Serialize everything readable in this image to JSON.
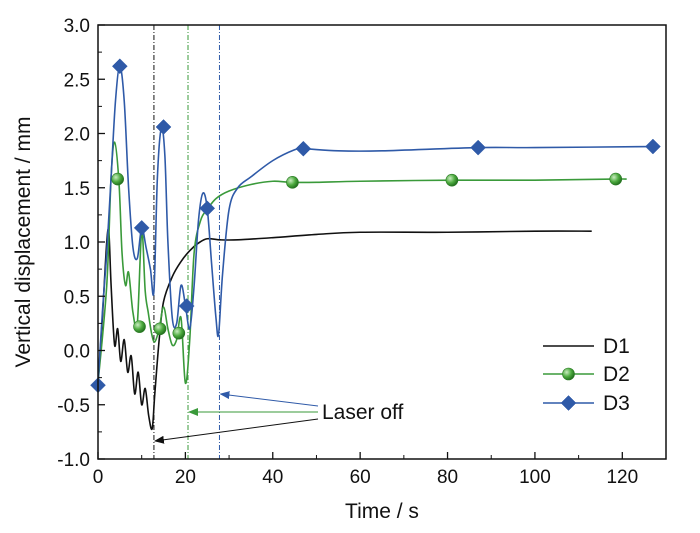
{
  "chart_data": {
    "type": "line",
    "title": "",
    "xlabel": "Time / s",
    "ylabel": "Vertical displacement / mm",
    "xlim": [
      0,
      130
    ],
    "ylim": [
      -1.0,
      3.0
    ],
    "xticks": [
      0,
      20,
      40,
      60,
      80,
      100,
      120
    ],
    "yticks": [
      -1.0,
      -0.5,
      0.0,
      0.5,
      1.0,
      1.5,
      2.0,
      2.5,
      3.0
    ],
    "grid": false,
    "legend_position": "bottom-right",
    "series": [
      {
        "name": "D1",
        "color": "#111111",
        "marker": "none",
        "points": [
          [
            0,
            -0.3
          ],
          [
            1,
            0.3
          ],
          [
            2,
            1.0
          ],
          [
            2.5,
            1.08
          ],
          [
            3,
            0.6
          ],
          [
            3.8,
            0.05
          ],
          [
            4.5,
            0.2
          ],
          [
            5.2,
            -0.1
          ],
          [
            6,
            0.1
          ],
          [
            6.8,
            -0.2
          ],
          [
            7.6,
            -0.05
          ],
          [
            8.4,
            -0.4
          ],
          [
            9.2,
            -0.2
          ],
          [
            10,
            -0.5
          ],
          [
            10.8,
            -0.35
          ],
          [
            11.6,
            -0.6
          ],
          [
            12.4,
            -0.72
          ],
          [
            13,
            -0.4
          ],
          [
            14,
            0.1
          ],
          [
            15,
            0.45
          ],
          [
            17,
            0.68
          ],
          [
            19,
            0.82
          ],
          [
            21,
            0.92
          ],
          [
            23,
            0.99
          ],
          [
            25,
            1.03
          ],
          [
            28,
            1.02
          ],
          [
            32,
            1.02
          ],
          [
            40,
            1.04
          ],
          [
            50,
            1.07
          ],
          [
            60,
            1.09
          ],
          [
            80,
            1.09
          ],
          [
            100,
            1.1
          ],
          [
            113,
            1.1
          ]
        ],
        "markers": []
      },
      {
        "name": "D2",
        "color": "#3a9a3a",
        "marker": "circle",
        "points": [
          [
            0,
            -0.3
          ],
          [
            2,
            0.6
          ],
          [
            3,
            1.6
          ],
          [
            3.8,
            1.92
          ],
          [
            4.8,
            1.55
          ],
          [
            5.5,
            0.9
          ],
          [
            6.3,
            0.6
          ],
          [
            7,
            0.72
          ],
          [
            8,
            0.35
          ],
          [
            9,
            0.25
          ],
          [
            10,
            1.1
          ],
          [
            10.8,
            0.55
          ],
          [
            11.5,
            0.35
          ],
          [
            12.3,
            0.15
          ],
          [
            13,
            0.08
          ],
          [
            14,
            0.2
          ],
          [
            15,
            0.4
          ],
          [
            16,
            0.2
          ],
          [
            17,
            0.05
          ],
          [
            18,
            0.1
          ],
          [
            19,
            0.3
          ],
          [
            20,
            -0.3
          ],
          [
            21,
            0.1
          ],
          [
            22,
            0.9
          ],
          [
            23.5,
            1.2
          ],
          [
            25,
            1.3
          ],
          [
            27,
            1.4
          ],
          [
            30,
            1.47
          ],
          [
            35,
            1.53
          ],
          [
            40,
            1.56
          ],
          [
            44,
            1.55
          ],
          [
            50,
            1.55
          ],
          [
            60,
            1.56
          ],
          [
            81,
            1.57
          ],
          [
            100,
            1.57
          ],
          [
            118,
            1.58
          ],
          [
            121,
            1.58
          ]
        ],
        "markers": [
          [
            4.5,
            1.58
          ],
          [
            9.5,
            0.22
          ],
          [
            14.2,
            0.2
          ],
          [
            18.5,
            0.16
          ],
          [
            44.5,
            1.55
          ],
          [
            81,
            1.57
          ],
          [
            118.5,
            1.58
          ]
        ]
      },
      {
        "name": "D3",
        "color": "#2f5aa8",
        "marker": "diamond",
        "points": [
          [
            0,
            -0.32
          ],
          [
            1,
            0.35
          ],
          [
            2,
            0.9
          ],
          [
            3,
            1.6
          ],
          [
            4,
            2.3
          ],
          [
            5,
            2.62
          ],
          [
            6,
            2.3
          ],
          [
            7,
            1.5
          ],
          [
            8,
            0.95
          ],
          [
            9,
            0.85
          ],
          [
            10,
            1.13
          ],
          [
            11,
            0.95
          ],
          [
            12,
            0.75
          ],
          [
            12.8,
            0.55
          ],
          [
            13.6,
            1.6
          ],
          [
            14.5,
            2.05
          ],
          [
            15.3,
            1.8
          ],
          [
            16,
            1.0
          ],
          [
            17,
            0.3
          ],
          [
            18,
            0.25
          ],
          [
            19,
            0.6
          ],
          [
            20,
            0.42
          ],
          [
            21,
            0.2
          ],
          [
            22,
            0.6
          ],
          [
            23,
            1.2
          ],
          [
            24,
            1.45
          ],
          [
            25,
            1.31
          ],
          [
            26,
            0.8
          ],
          [
            27,
            0.3
          ],
          [
            27.6,
            0.15
          ],
          [
            28.5,
            0.7
          ],
          [
            30,
            1.3
          ],
          [
            32,
            1.5
          ],
          [
            35,
            1.6
          ],
          [
            40,
            1.75
          ],
          [
            45,
            1.85
          ],
          [
            47,
            1.86
          ],
          [
            55,
            1.84
          ],
          [
            65,
            1.84
          ],
          [
            87,
            1.87
          ],
          [
            100,
            1.87
          ],
          [
            127,
            1.88
          ]
        ],
        "markers": [
          [
            0,
            -0.32
          ],
          [
            5,
            2.62
          ],
          [
            10,
            1.13
          ],
          [
            15,
            2.06
          ],
          [
            20.3,
            0.41
          ],
          [
            25,
            1.31
          ],
          [
            47,
            1.86
          ],
          [
            87,
            1.87
          ],
          [
            127,
            1.88
          ]
        ]
      }
    ],
    "annotations": [
      {
        "text": "Laser off",
        "vlines": [
          {
            "x": 12.8,
            "color": "#111111"
          },
          {
            "x": 20.6,
            "color": "#3a9a3a"
          },
          {
            "x": 27.8,
            "color": "#2f5aa8"
          }
        ]
      }
    ]
  }
}
